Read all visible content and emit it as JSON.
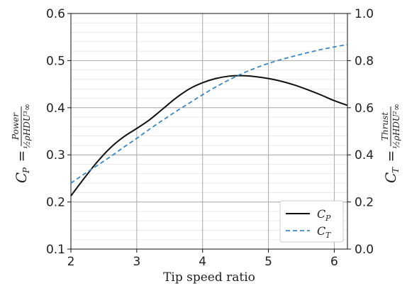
{
  "chart_data": {
    "type": "line",
    "xlabel": "Tip speed ratio",
    "ylabel_left": {
      "lhs": "C",
      "lhs_sub": "P",
      "eq": "=",
      "numerator": "Power",
      "denominator": "½ρHDU³∞"
    },
    "ylabel_right": {
      "lhs": "C",
      "lhs_sub": "T",
      "eq": "=",
      "numerator": "Thrust",
      "denominator": "½ρHDU²∞"
    },
    "xlim": [
      2.0,
      6.2
    ],
    "ylim_left": [
      0.1,
      0.6
    ],
    "ylim_right": [
      0.0,
      1.0
    ],
    "xticks": [
      2,
      3,
      4,
      5,
      6
    ],
    "yticks_left": [
      "0.1",
      "0.2",
      "0.3",
      "0.4",
      "0.5",
      "0.6"
    ],
    "yticks_right": [
      "0.0",
      "0.2",
      "0.4",
      "0.6",
      "0.8",
      "1.0"
    ],
    "grid": true,
    "legend_position": "bottom-right",
    "series": [
      {
        "name": "C_P",
        "label_main": "C",
        "label_sub": "P",
        "axis": "left",
        "style": "solid",
        "color": "#111111",
        "x": [
          2.0,
          2.2,
          2.4,
          2.6,
          2.8,
          3.0,
          3.2,
          3.4,
          3.6,
          3.8,
          4.0,
          4.2,
          4.4,
          4.6,
          4.8,
          5.0,
          5.2,
          5.4,
          5.6,
          5.8,
          6.0,
          6.2
        ],
        "y": [
          0.213,
          0.25,
          0.285,
          0.315,
          0.338,
          0.356,
          0.375,
          0.398,
          0.421,
          0.44,
          0.453,
          0.462,
          0.467,
          0.468,
          0.466,
          0.462,
          0.456,
          0.448,
          0.438,
          0.427,
          0.415,
          0.405
        ]
      },
      {
        "name": "C_T",
        "label_main": "C",
        "label_sub": "T",
        "axis": "right",
        "style": "dashed",
        "color": "#3a87c7",
        "x": [
          2.0,
          2.2,
          2.4,
          2.6,
          2.8,
          3.0,
          3.2,
          3.4,
          3.6,
          3.8,
          4.0,
          4.2,
          4.4,
          4.6,
          4.8,
          5.0,
          5.2,
          5.4,
          5.6,
          5.8,
          6.0,
          6.2
        ],
        "y": [
          0.28,
          0.318,
          0.355,
          0.392,
          0.432,
          0.47,
          0.51,
          0.548,
          0.585,
          0.62,
          0.655,
          0.688,
          0.718,
          0.745,
          0.768,
          0.788,
          0.805,
          0.82,
          0.834,
          0.847,
          0.858,
          0.868
        ]
      }
    ]
  }
}
